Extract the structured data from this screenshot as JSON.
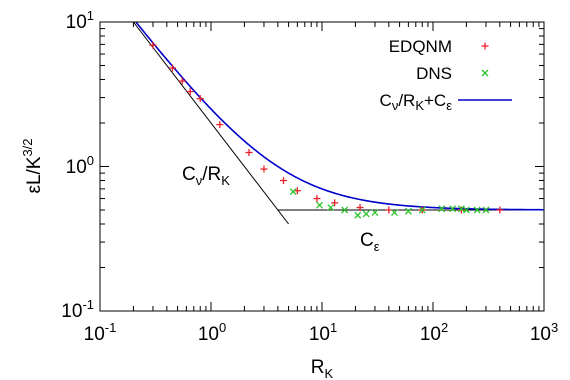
{
  "chart_data": {
    "type": "scatter",
    "xscale": "log",
    "yscale": "log",
    "xlim": [
      0.1,
      1000
    ],
    "ylim": [
      0.1,
      10
    ],
    "grid": false,
    "legend_position": "top-right",
    "xlabel": {
      "base": "R",
      "sub": "K"
    },
    "ylabel": {
      "base": "εL/K",
      "sup": "3/2"
    },
    "x_ticks": [
      {
        "value": 0.1,
        "base": "10",
        "exp": "-1"
      },
      {
        "value": 1,
        "base": "10",
        "exp": "0"
      },
      {
        "value": 10,
        "base": "10",
        "exp": "1"
      },
      {
        "value": 100,
        "base": "10",
        "exp": "2"
      },
      {
        "value": 1000,
        "base": "10",
        "exp": "3"
      }
    ],
    "y_ticks": [
      {
        "value": 0.1,
        "label": "10",
        "exp": "-1"
      },
      {
        "value": 1,
        "label": "10",
        "exp": "0"
      },
      {
        "value": 10,
        "label": "10",
        "exp": "1"
      }
    ],
    "y_tick_text": {
      "mid": "10"
    },
    "series": [
      {
        "name": "EDQNM",
        "marker": "plus",
        "color": "#e8202a",
        "x": [
          0.3,
          0.45,
          0.55,
          0.65,
          0.8,
          1.2,
          2.2,
          3.0,
          4.5,
          6.0,
          9.0,
          13,
          22,
          40,
          80,
          180,
          400
        ],
        "y": [
          6.9,
          4.8,
          3.9,
          3.3,
          2.95,
          1.95,
          1.25,
          0.96,
          0.8,
          0.68,
          0.6,
          0.56,
          0.52,
          0.5,
          0.5,
          0.5,
          0.5
        ]
      },
      {
        "name": "DNS",
        "marker": "x",
        "color": "#2ec22e",
        "x": [
          5.5,
          9.5,
          12,
          16,
          21,
          25,
          30,
          45,
          60,
          80,
          120,
          150,
          180,
          200,
          250,
          300
        ],
        "y": [
          0.67,
          0.54,
          0.52,
          0.5,
          0.46,
          0.47,
          0.48,
          0.48,
          0.49,
          0.5,
          0.51,
          0.51,
          0.51,
          0.5,
          0.5,
          0.5
        ]
      },
      {
        "name": "Cν/RK+Cε",
        "type": "line",
        "color": "#0000cc",
        "function": "C_nu/x + C_eps",
        "C_nu": 2.0,
        "C_eps": 0.5
      }
    ],
    "legend_labels": {
      "edqnm": "EDQNM",
      "dns": "DNS",
      "fit_base_a": "C",
      "fit_sub_a": "ν",
      "fit_mid": "/R",
      "fit_sub_b": "K",
      "fit_plus": "+C",
      "fit_sub_c": "ε"
    },
    "asymptotes": [
      {
        "kind": "power",
        "x_range": [
          0.2,
          5.0
        ],
        "C": 2.0,
        "color": "#000000"
      },
      {
        "kind": "constant",
        "x_range": [
          4.0,
          1000
        ],
        "value": 0.5,
        "color": "#000000"
      }
    ],
    "annotations": {
      "cnu_rk": {
        "base": "C",
        "sub": "ν",
        "mid": "/R",
        "sub2": "K"
      },
      "ceps": {
        "base": "C",
        "sub": "ε"
      }
    }
  }
}
